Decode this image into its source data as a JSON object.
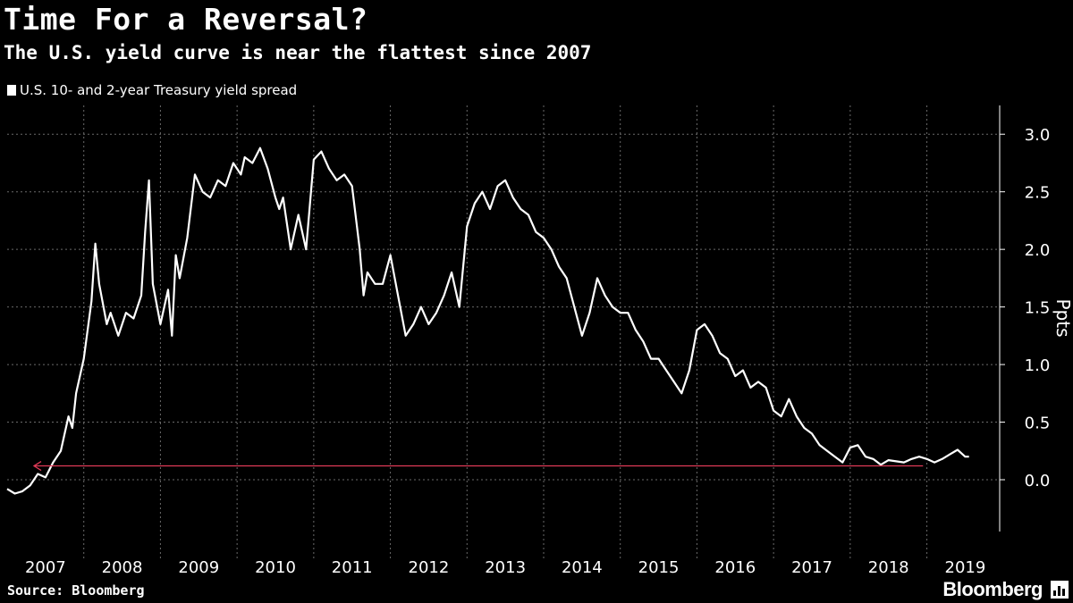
{
  "header": {
    "title": "Time For a Reversal?",
    "subtitle": "The U.S. yield curve is near the flattest since 2007"
  },
  "footer": {
    "source": "Source: Bloomberg",
    "brand": "Bloomberg"
  },
  "colors": {
    "background": "#000000",
    "line": "#ffffff",
    "grid": "#6a6a6a",
    "arrow": "#e03a57"
  },
  "chart_data": {
    "type": "line",
    "title": "Time For a Reversal?",
    "subtitle": "The U.S. yield curve is near the flattest since 2007",
    "ylabel": "Ppts",
    "xlabel": "",
    "ylim": [
      -0.45,
      3.25
    ],
    "xlim": [
      2007.0,
      2019.95
    ],
    "yticks": [
      0.0,
      0.5,
      1.0,
      1.5,
      2.0,
      2.5,
      3.0
    ],
    "ytick_labels": [
      "0.0",
      "0.5",
      "1.0",
      "1.5",
      "2.0",
      "2.5",
      "3.0"
    ],
    "xtick_labels": [
      "2007",
      "2008",
      "2009",
      "2010",
      "2011",
      "2012",
      "2013",
      "2014",
      "2015",
      "2016",
      "2017",
      "2018",
      "2019"
    ],
    "grid": true,
    "legend": "top-left",
    "series": [
      {
        "name": "U.S. 10- and 2-year Treasury yield spread",
        "x": [
          2007.0,
          2007.1,
          2007.2,
          2007.3,
          2007.4,
          2007.5,
          2007.6,
          2007.7,
          2007.8,
          2007.85,
          2007.9,
          2008.0,
          2008.1,
          2008.15,
          2008.2,
          2008.3,
          2008.35,
          2008.45,
          2008.55,
          2008.65,
          2008.75,
          2008.8,
          2008.85,
          2008.9,
          2009.0,
          2009.1,
          2009.15,
          2009.2,
          2009.25,
          2009.35,
          2009.45,
          2009.55,
          2009.65,
          2009.75,
          2009.85,
          2009.95,
          2010.05,
          2010.1,
          2010.2,
          2010.3,
          2010.4,
          2010.5,
          2010.55,
          2010.6,
          2010.7,
          2010.8,
          2010.9,
          2011.0,
          2011.1,
          2011.2,
          2011.3,
          2011.4,
          2011.5,
          2011.6,
          2011.65,
          2011.7,
          2011.8,
          2011.9,
          2012.0,
          2012.1,
          2012.2,
          2012.3,
          2012.4,
          2012.5,
          2012.6,
          2012.7,
          2012.8,
          2012.9,
          2013.0,
          2013.1,
          2013.2,
          2013.3,
          2013.4,
          2013.5,
          2013.6,
          2013.7,
          2013.8,
          2013.9,
          2014.0,
          2014.1,
          2014.2,
          2014.3,
          2014.4,
          2014.5,
          2014.6,
          2014.7,
          2014.8,
          2014.9,
          2015.0,
          2015.1,
          2015.2,
          2015.3,
          2015.4,
          2015.5,
          2015.6,
          2015.7,
          2015.8,
          2015.9,
          2016.0,
          2016.1,
          2016.2,
          2016.3,
          2016.4,
          2016.5,
          2016.6,
          2016.7,
          2016.8,
          2016.9,
          2017.0,
          2017.1,
          2017.2,
          2017.3,
          2017.4,
          2017.5,
          2017.6,
          2017.7,
          2017.8,
          2017.9,
          2018.0,
          2018.1,
          2018.2,
          2018.3,
          2018.4,
          2018.5,
          2018.6,
          2018.7,
          2018.8,
          2018.9,
          2019.0,
          2019.1,
          2019.2,
          2019.3,
          2019.4,
          2019.5,
          2019.55
        ],
        "values": [
          -0.08,
          -0.12,
          -0.1,
          -0.05,
          0.05,
          0.02,
          0.15,
          0.25,
          0.55,
          0.45,
          0.75,
          1.05,
          1.55,
          2.05,
          1.7,
          1.35,
          1.45,
          1.25,
          1.45,
          1.4,
          1.6,
          2.15,
          2.6,
          1.7,
          1.35,
          1.65,
          1.25,
          1.95,
          1.75,
          2.1,
          2.65,
          2.5,
          2.45,
          2.6,
          2.55,
          2.75,
          2.65,
          2.8,
          2.75,
          2.88,
          2.7,
          2.45,
          2.35,
          2.45,
          2.0,
          2.3,
          2.0,
          2.78,
          2.85,
          2.7,
          2.6,
          2.65,
          2.55,
          2.0,
          1.6,
          1.8,
          1.7,
          1.7,
          1.95,
          1.6,
          1.25,
          1.35,
          1.5,
          1.35,
          1.45,
          1.6,
          1.8,
          1.5,
          2.2,
          2.4,
          2.5,
          2.35,
          2.55,
          2.6,
          2.45,
          2.35,
          2.3,
          2.15,
          2.1,
          2.0,
          1.85,
          1.75,
          1.5,
          1.25,
          1.45,
          1.75,
          1.6,
          1.5,
          1.45,
          1.45,
          1.3,
          1.2,
          1.05,
          1.05,
          0.95,
          0.85,
          0.75,
          0.95,
          1.3,
          1.35,
          1.25,
          1.1,
          1.05,
          0.9,
          0.95,
          0.8,
          0.85,
          0.8,
          0.6,
          0.55,
          0.7,
          0.55,
          0.45,
          0.4,
          0.3,
          0.25,
          0.2,
          0.15,
          0.28,
          0.3,
          0.2,
          0.18,
          0.13,
          0.17,
          0.16,
          0.15,
          0.18,
          0.2,
          0.18,
          0.15,
          0.18,
          0.22,
          0.26,
          0.2,
          0.2
        ]
      }
    ],
    "annotations": [
      {
        "type": "arrow",
        "from_x": 2018.95,
        "to_x": 2007.35,
        "y": 0.12,
        "color": "#e03a57"
      }
    ]
  }
}
